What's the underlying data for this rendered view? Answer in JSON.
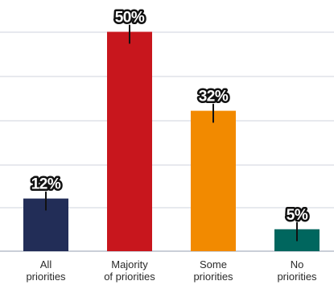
{
  "chart_data": {
    "type": "bar",
    "title": "",
    "xlabel": "",
    "ylabel": "",
    "ylim": [
      0,
      55
    ],
    "grid": "horizontal",
    "categories": [
      "All priorities",
      "Majority of priorities",
      "Some priorities",
      "No priorities"
    ],
    "category_lines": [
      [
        "All",
        "priorities"
      ],
      [
        "Majority",
        "of priorities"
      ],
      [
        "Some",
        "priorities"
      ],
      [
        "No",
        "priorities"
      ]
    ],
    "values": [
      12,
      50,
      32,
      5
    ],
    "data_labels": [
      "12%",
      "50%",
      "32%",
      "5%"
    ],
    "colors": [
      "#222d57",
      "#c8161d",
      "#f28a00",
      "#00665e"
    ],
    "gridline_color": "#cfd3de",
    "axis_color": "#b9bfcc",
    "label_outline_color": "#111111"
  }
}
